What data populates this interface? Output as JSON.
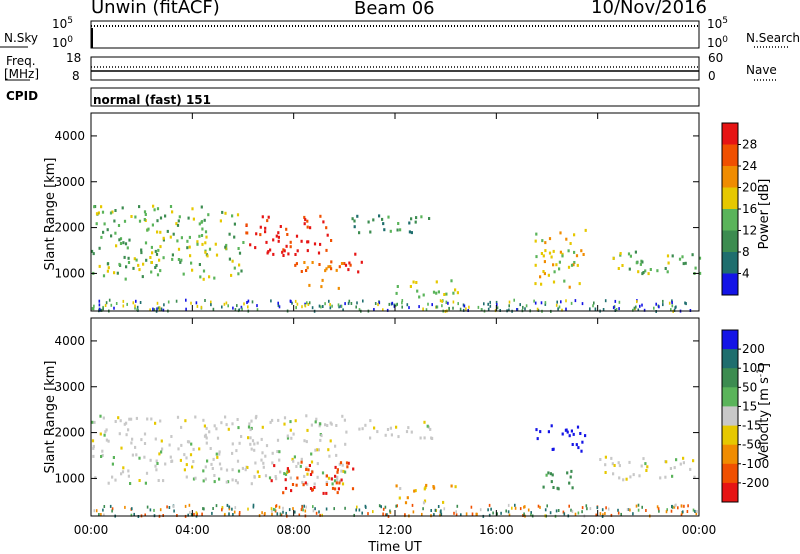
{
  "header": {
    "station": "Unwin (fitACF)",
    "beam": "Beam 06",
    "date": "10/Nov/2016"
  },
  "summary": {
    "nsky_label": "N.Sky",
    "nsky_ticks": [
      "10^5",
      "10^0"
    ],
    "nsearch_label": "N.Search",
    "nsearch_ticks": [
      "10^5",
      "10^0"
    ],
    "freq_label": "Freq.",
    "freq_unit": "[MHz]",
    "freq_ticks": [
      "18",
      "8"
    ],
    "nave_label": "Nave",
    "nave_ticks": [
      "60",
      "0"
    ],
    "cpid_label": "CPID",
    "cpid_value": "normal (fast) 151"
  },
  "colors": {
    "power": [
      "#1414e6",
      "#1f6e6e",
      "#3c8c50",
      "#5ab45a",
      "#e6c800",
      "#f08c00",
      "#f05000",
      "#e61414"
    ],
    "velocity": [
      "#1414e6",
      "#1f6e6e",
      "#3c8c50",
      "#5ab45a",
      "#c8c8c8",
      "#e6c800",
      "#f08c00",
      "#f05000",
      "#e61414"
    ]
  },
  "chart_data": [
    {
      "type": "heatmap",
      "quantity": "power",
      "ylabel": "Slant Range [km]",
      "xlabel": "",
      "x_ticks": [
        "00:00",
        "04:00",
        "08:00",
        "12:00",
        "16:00",
        "20:00",
        "00:00"
      ],
      "xlim_hours": [
        0,
        24
      ],
      "y_ticks": [
        "1000",
        "2000",
        "3000",
        "4000"
      ],
      "ylim_km": [
        180,
        4500
      ],
      "colorbar_label": "Power [dB]",
      "colorbar_ticks": [
        "28",
        "24",
        "20",
        "16",
        "12",
        "8",
        "4"
      ],
      "features": [
        {
          "name": "west echo band",
          "hours": [
            0,
            6
          ],
          "km": [
            900,
            2500
          ],
          "level_db": 14
        },
        {
          "name": "strong arc",
          "hours": [
            6,
            9.5
          ],
          "km": [
            1400,
            2300
          ],
          "level_db": 30
        },
        {
          "name": "low descending band",
          "hours": [
            8,
            10
          ],
          "km": [
            700,
            1300
          ],
          "level_db": 24
        },
        {
          "name": "short strong echo",
          "hours": [
            10,
            10.8
          ],
          "km": [
            1000,
            1500
          ],
          "level_db": 30
        },
        {
          "name": "far range band",
          "hours": [
            10,
            13.5
          ],
          "km": [
            1900,
            2300
          ],
          "level_db": 10
        },
        {
          "name": "descending slant echo",
          "hours": [
            12,
            14.5
          ],
          "km": [
            500,
            900
          ],
          "level_db": 16
        },
        {
          "name": "afternoon cluster",
          "hours": [
            17.5,
            19.5
          ],
          "km": [
            700,
            2000
          ],
          "level_db": 18
        },
        {
          "name": "late band",
          "hours": [
            20,
            24
          ],
          "km": [
            1000,
            1500
          ],
          "level_db": 14
        }
      ]
    },
    {
      "type": "heatmap",
      "quantity": "velocity",
      "ylabel": "Slant Range [km]",
      "xlabel": "Time UT",
      "x_ticks": [
        "00:00",
        "04:00",
        "08:00",
        "12:00",
        "16:00",
        "20:00",
        "00:00"
      ],
      "xlim_hours": [
        0,
        24
      ],
      "y_ticks": [
        "1000",
        "2000",
        "3000",
        "4000"
      ],
      "ylim_km": [
        180,
        4500
      ],
      "colorbar_label": "Velocity [m s",
      "colorbar_sup": "-1",
      "colorbar_ticks": [
        "200",
        "100",
        "50",
        "15",
        "-15",
        "-50",
        "-100",
        "-200"
      ],
      "features": [
        {
          "name": "ground scatter band",
          "hours": [
            0,
            10
          ],
          "km": [
            900,
            2400
          ],
          "level_ms": 0
        },
        {
          "name": "negative low echo",
          "hours": [
            7,
            10.5
          ],
          "km": [
            700,
            1400
          ],
          "level_ms": -150
        },
        {
          "name": "far band",
          "hours": [
            10,
            13.5
          ],
          "km": [
            1900,
            2300
          ],
          "level_ms": 0
        },
        {
          "name": "slant echo",
          "hours": [
            12,
            14.5
          ],
          "km": [
            500,
            900
          ],
          "level_ms": -30
        },
        {
          "name": "positive cluster",
          "hours": [
            17.5,
            19.5
          ],
          "km": [
            1600,
            2200
          ],
          "level_ms": 200
        },
        {
          "name": "mixed cluster",
          "hours": [
            17.5,
            19
          ],
          "km": [
            800,
            1300
          ],
          "level_ms": 40
        },
        {
          "name": "late ground scatter",
          "hours": [
            20,
            24
          ],
          "km": [
            1000,
            1500
          ],
          "level_ms": 0
        }
      ]
    }
  ]
}
